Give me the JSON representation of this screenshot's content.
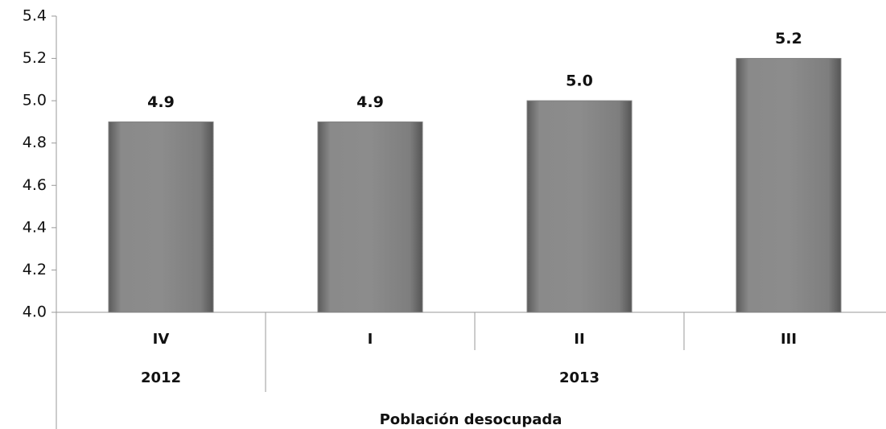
{
  "chart_data": {
    "type": "bar",
    "x_label": "Población desocupada",
    "categories": [
      "IV",
      "I",
      "II",
      "III"
    ],
    "groups": [
      "2012",
      "2013"
    ],
    "group_spans": [
      1,
      3
    ],
    "values": [
      4.9,
      4.9,
      5.0,
      5.2
    ],
    "value_labels": [
      "4.9",
      "4.9",
      "5.0",
      "5.2"
    ],
    "color": "#808080",
    "ylim": [
      4.0,
      5.4
    ],
    "yticks": [
      {
        "value": 4.0,
        "label": "4.0"
      },
      4.2,
      4.4,
      4.6,
      4.8,
      {
        "value": 5.0,
        "label": "5.0"
      },
      5.2,
      5.4
    ],
    "grid": false
  }
}
